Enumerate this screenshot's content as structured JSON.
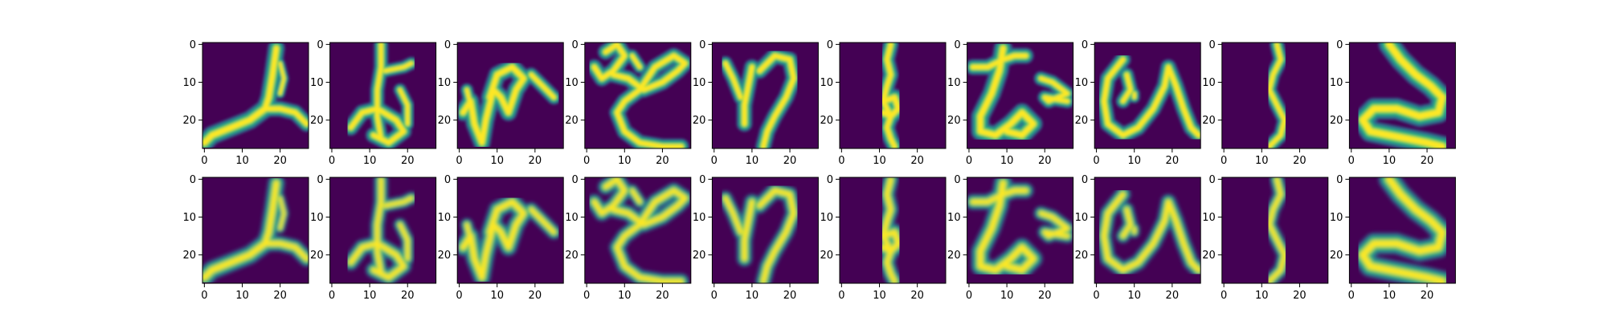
{
  "figure": {
    "background": "#ffffff",
    "colormap": [
      "#440154",
      "#31688e",
      "#21918c",
      "#35b779",
      "#90d743",
      "#fde725"
    ],
    "rows": 2,
    "cols": 10
  },
  "chart_data": {
    "type": "heatmap",
    "grid": "2 rows x 10 columns of 28x28 grayscale character images (Kuzushiji-style), top row = original, bottom row = reconstruction",
    "grid_lines": false,
    "axes": {
      "xlim": [
        -0.5,
        27.5
      ],
      "ylim": [
        27.5,
        -0.5
      ],
      "x_ticks": [
        0,
        10,
        20
      ],
      "x_tick_labels": [
        "0",
        "10",
        "20"
      ],
      "y_ticks": [
        0,
        10,
        20
      ],
      "y_tick_labels": [
        "0",
        "10",
        "20"
      ]
    },
    "glyphs": [
      {
        "strokes": [
          {
            "w": 2.4,
            "pts": [
              [
                19,
                1
              ],
              [
                18,
                8
              ],
              [
                17,
                14
              ],
              [
                16,
                17
              ]
            ]
          },
          {
            "w": 2.6,
            "pts": [
              [
                16,
                17
              ],
              [
                12,
                20
              ],
              [
                7,
                22
              ],
              [
                2,
                24
              ],
              [
                0,
                26
              ]
            ]
          },
          {
            "w": 2.2,
            "pts": [
              [
                16,
                17
              ],
              [
                20,
                17
              ],
              [
                24,
                18
              ],
              [
                27,
                21
              ]
            ]
          },
          {
            "w": 1.4,
            "pts": [
              [
                20,
                5
              ],
              [
                21,
                9
              ],
              [
                20,
                13
              ]
            ]
          }
        ]
      },
      {
        "strokes": [
          {
            "w": 2.0,
            "pts": [
              [
                13,
                0
              ],
              [
                13,
                6
              ],
              [
                12,
                12
              ],
              [
                12,
                19
              ],
              [
                13,
                25
              ]
            ]
          },
          {
            "w": 1.8,
            "pts": [
              [
                14,
                7
              ],
              [
                19,
                6
              ],
              [
                21,
                5
              ]
            ]
          },
          {
            "w": 2.2,
            "pts": [
              [
                5,
                22
              ],
              [
                8,
                18
              ],
              [
                12,
                17
              ],
              [
                17,
                20
              ],
              [
                19,
                23
              ],
              [
                15,
                26
              ],
              [
                11,
                24
              ]
            ]
          },
          {
            "w": 1.8,
            "pts": [
              [
                18,
                12
              ],
              [
                20,
                16
              ],
              [
                20,
                21
              ]
            ]
          }
        ]
      },
      {
        "strokes": [
          {
            "w": 2.4,
            "pts": [
              [
                1,
                18
              ],
              [
                3,
                15
              ],
              [
                4,
                21
              ],
              [
                6,
                26
              ],
              [
                7,
                20
              ],
              [
                9,
                12
              ],
              [
                11,
                14
              ],
              [
                13,
                18
              ],
              [
                15,
                12
              ],
              [
                17,
                9
              ],
              [
                14,
                6
              ],
              [
                10,
                8
              ],
              [
                8,
                14
              ]
            ]
          },
          {
            "w": 2.0,
            "pts": [
              [
                19,
                8
              ],
              [
                22,
                11
              ],
              [
                25,
                14
              ]
            ]
          },
          {
            "w": 1.8,
            "pts": [
              [
                2,
                12
              ],
              [
                3,
                16
              ]
            ]
          }
        ]
      },
      {
        "strokes": [
          {
            "w": 2.2,
            "pts": [
              [
                5,
                2
              ],
              [
                8,
                0
              ],
              [
                10,
                3
              ],
              [
                7,
                7
              ],
              [
                4,
                9
              ],
              [
                2,
                6
              ]
            ]
          },
          {
            "w": 2.2,
            "pts": [
              [
                7,
                8
              ],
              [
                11,
                9
              ],
              [
                15,
                12
              ],
              [
                20,
                10
              ],
              [
                24,
                7
              ],
              [
                26,
                5
              ],
              [
                23,
                3
              ],
              [
                18,
                6
              ],
              [
                14,
                12
              ],
              [
                10,
                15
              ],
              [
                8,
                18
              ],
              [
                10,
                23
              ],
              [
                14,
                26
              ],
              [
                20,
                27
              ],
              [
                25,
                27
              ]
            ]
          },
          {
            "w": 1.8,
            "pts": [
              [
                12,
                3
              ],
              [
                14,
                6
              ]
            ]
          }
        ]
      },
      {
        "strokes": [
          {
            "w": 2.0,
            "pts": [
              [
                3,
                5
              ],
              [
                5,
                9
              ],
              [
                7,
                14
              ]
            ]
          },
          {
            "w": 2.2,
            "pts": [
              [
                10,
                6
              ],
              [
                9,
                11
              ],
              [
                8,
                16
              ],
              [
                8,
                21
              ]
            ]
          },
          {
            "w": 2.2,
            "pts": [
              [
                12,
                7
              ],
              [
                16,
                3
              ],
              [
                20,
                4
              ],
              [
                21,
                9
              ],
              [
                19,
                14
              ],
              [
                16,
                19
              ],
              [
                14,
                23
              ],
              [
                13,
                27
              ]
            ]
          }
        ]
      },
      {
        "strokes": [
          {
            "w": 2.2,
            "pts": [
              [
                13,
                0
              ],
              [
                12,
                4
              ],
              [
                13,
                8
              ],
              [
                12,
                11
              ],
              [
                11,
                15
              ],
              [
                13,
                19
              ],
              [
                12,
                22
              ],
              [
                13,
                25
              ],
              [
                14,
                27
              ]
            ]
          },
          {
            "w": 2.4,
            "pts": [
              [
                11,
                15
              ],
              [
                14,
                14
              ],
              [
                15,
                17
              ],
              [
                13,
                19
              ],
              [
                11,
                18
              ]
            ]
          }
        ]
      },
      {
        "strokes": [
          {
            "w": 2.2,
            "pts": [
              [
                1,
                6
              ],
              [
                5,
                6
              ],
              [
                9,
                4
              ],
              [
                12,
                3
              ],
              [
                15,
                3
              ]
            ]
          },
          {
            "w": 2.6,
            "pts": [
              [
                9,
                1
              ],
              [
                8,
                7
              ],
              [
                6,
                13
              ],
              [
                3,
                19
              ],
              [
                3,
                23
              ],
              [
                7,
                24
              ],
              [
                11,
                21
              ],
              [
                14,
                18
              ],
              [
                17,
                21
              ],
              [
                14,
                24
              ],
              [
                10,
                23
              ]
            ]
          },
          {
            "w": 2.0,
            "pts": [
              [
                19,
                9
              ],
              [
                22,
                10
              ],
              [
                26,
                13
              ],
              [
                21,
                15
              ],
              [
                20,
                14
              ],
              [
                26,
                15
              ]
            ]
          }
        ]
      },
      {
        "strokes": [
          {
            "w": 2.2,
            "pts": [
              [
                7,
                4
              ],
              [
                3,
                9
              ],
              [
                2,
                15
              ],
              [
                3,
                21
              ],
              [
                7,
                24
              ],
              [
                11,
                22
              ],
              [
                15,
                17
              ],
              [
                18,
                11
              ],
              [
                19,
                6
              ],
              [
                21,
                11
              ],
              [
                23,
                17
              ],
              [
                25,
                22
              ],
              [
                27,
                24
              ]
            ]
          },
          {
            "w": 2.0,
            "pts": [
              [
                8,
                8
              ],
              [
                9,
                12
              ],
              [
                7,
                15
              ]
            ]
          },
          {
            "w": 1.6,
            "pts": [
              [
                10,
                13
              ],
              [
                10,
                14
              ]
            ]
          }
        ]
      },
      {
        "strokes": [
          {
            "w": 2.0,
            "pts": [
              [
                14,
                0
              ],
              [
                15,
                4
              ],
              [
                13,
                8
              ],
              [
                12,
                12
              ],
              [
                14,
                16
              ],
              [
                16,
                20
              ],
              [
                15,
                24
              ],
              [
                12,
                27
              ]
            ]
          }
        ]
      },
      {
        "strokes": [
          {
            "w": 3.0,
            "pts": [
              [
                10,
                0
              ],
              [
                13,
                4
              ],
              [
                17,
                8
              ],
              [
                21,
                11
              ],
              [
                24,
                14
              ],
              [
                23,
                18
              ],
              [
                18,
                19
              ],
              [
                12,
                17
              ],
              [
                6,
                17
              ],
              [
                3,
                20
              ],
              [
                5,
                23
              ],
              [
                10,
                24
              ],
              [
                15,
                25
              ],
              [
                20,
                26
              ],
              [
                24,
                27
              ]
            ]
          }
        ]
      }
    ]
  }
}
